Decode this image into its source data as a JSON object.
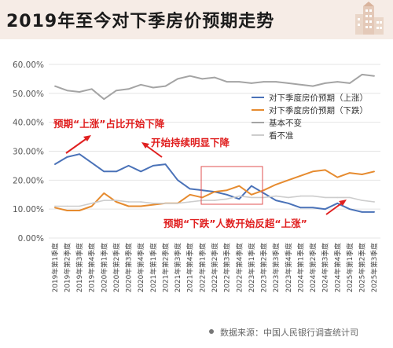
{
  "header": {
    "title": "2019年至今对下季房价预期走势"
  },
  "footer": {
    "source": "数据来源：中国人民银行调查统计司"
  },
  "colors": {
    "up": "#4a72b8",
    "down": "#e68b2f",
    "flat": "#a4a4a4",
    "unsure": "#cdcdcd",
    "annotation": "#e02020"
  },
  "chart_data": {
    "type": "line",
    "categories": [
      "2019年第1季度",
      "2019年第2季度",
      "2019年第3季度",
      "2019年第4季度",
      "2020年第1季度",
      "2020年第2季度",
      "2020年第3季度",
      "2020年第4季度",
      "2021年第1季度",
      "2021年第2季度",
      "2021年第3季度",
      "2021年第4季度",
      "2022年第1季度",
      "2022年第2季度",
      "2022年第3季度",
      "2022年第4季度",
      "2023年第1季度",
      "2023年第2季度",
      "2023年第3季度",
      "2023年第4季度",
      "2024年第1季度",
      "2024年第2季度",
      "2024年第3季度",
      "2024年第4季度",
      "2025年第1季度",
      "2025年第2季度",
      "2025年第3季度"
    ],
    "ylim": [
      0,
      60
    ],
    "yticks": [
      "0.00%",
      "10.00%",
      "20.00%",
      "30.00%",
      "40.00%",
      "50.00%",
      "60.00%"
    ],
    "grid": true,
    "legend_position": "right",
    "series": [
      {
        "name": "对下季度房价预期（上涨）",
        "color": "#4a72b8",
        "values": [
          25.5,
          28,
          29,
          26,
          23,
          23,
          25,
          23,
          25,
          25.5,
          20,
          17,
          16.5,
          16,
          15,
          13.5,
          18,
          15.5,
          13,
          12,
          10.5,
          10.5,
          10,
          12,
          10,
          9,
          9
        ]
      },
      {
        "name": "对下季度房价预期（下跌）",
        "color": "#e68b2f",
        "values": [
          10.5,
          9.5,
          9.5,
          11,
          15.5,
          12.5,
          11,
          11,
          11.5,
          12,
          12,
          15,
          14,
          16,
          16.5,
          18,
          15,
          16.5,
          18.5,
          20,
          21.5,
          23,
          23.5,
          21,
          22.5,
          22,
          23
        ]
      },
      {
        "name": "基本不变",
        "color": "#a4a4a4",
        "values": [
          52.5,
          51,
          50.5,
          51.5,
          48,
          51,
          51.5,
          53,
          52,
          52.5,
          55,
          56,
          55,
          55.5,
          54,
          54,
          53.5,
          54,
          54,
          53.5,
          53,
          52.5,
          53.5,
          54,
          53.5,
          56.5,
          56
        ]
      },
      {
        "name": "看不准",
        "color": "#cdcdcd",
        "values": [
          11,
          11,
          11,
          12,
          13,
          13,
          12.5,
          12.5,
          12,
          12,
          12,
          12.5,
          13,
          13,
          13.5,
          14.5,
          14,
          14,
          14.5,
          14,
          14.5,
          14.5,
          14,
          14,
          14,
          13,
          12.5
        ]
      }
    ],
    "annotations": [
      "预期“上涨”占比开始下降",
      "开始持续明显下降",
      "预期“下跌”人数开始反超“上涨”"
    ]
  }
}
